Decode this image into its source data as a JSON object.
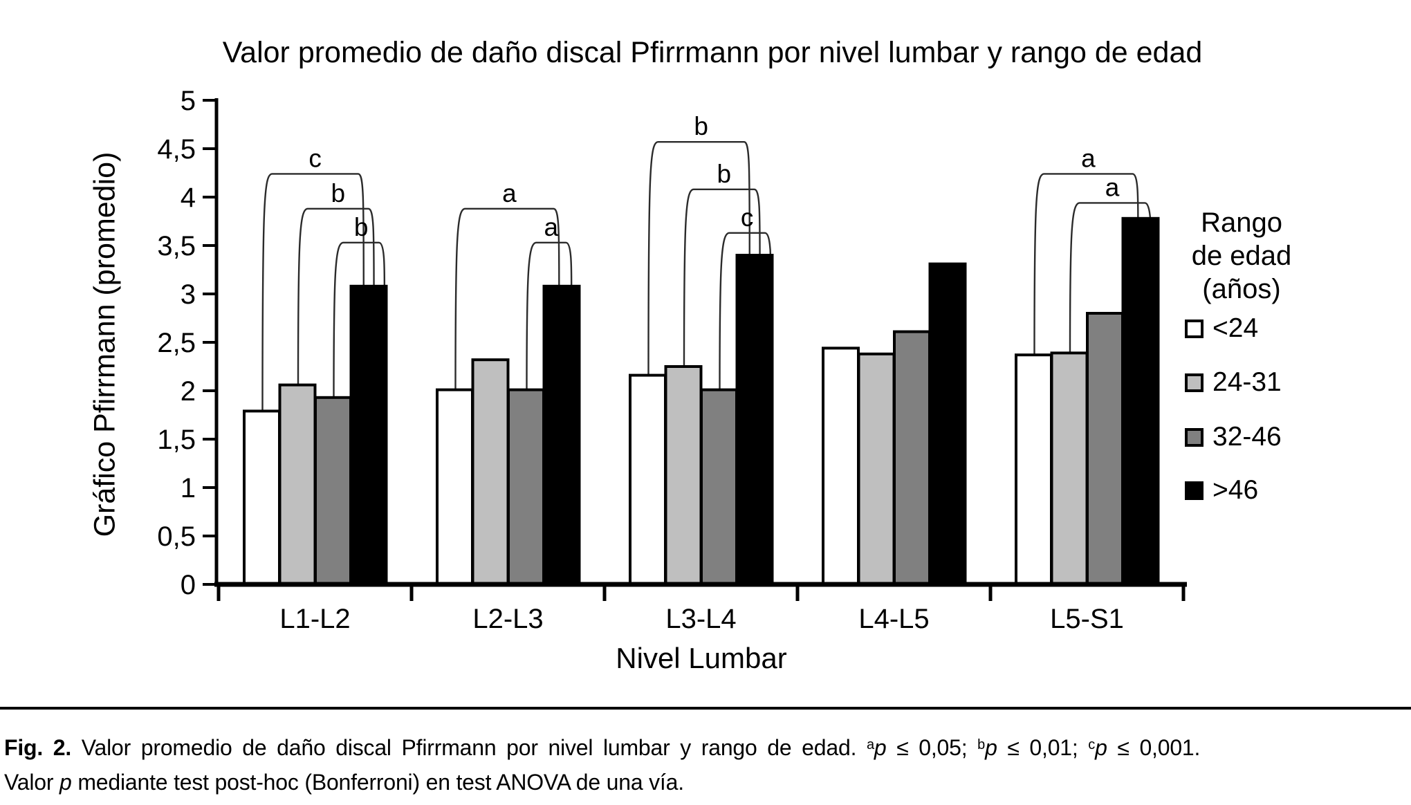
{
  "figure": {
    "title": "Valor promedio de daño discal Pfirrmann por nivel lumbar y rango de edad",
    "y_axis_title": "Gráfico Pfirrmann (promedio)",
    "x_axis_title": "Nivel Lumbar"
  },
  "legend": {
    "title_lines": [
      "Rango",
      "de edad",
      "(años)"
    ],
    "items": [
      {
        "label": "<24",
        "color": "#ffffff"
      },
      {
        "label": "24-31",
        "color": "#bfbfbf"
      },
      {
        "label": "32-46",
        "color": "#808080"
      },
      {
        "label": ">46",
        "color": "#000000"
      }
    ]
  },
  "chart_data": {
    "type": "bar",
    "title": "Valor promedio de daño discal Pfirrmann por nivel lumbar y rango de edad",
    "xlabel": "Nivel Lumbar",
    "ylabel": "Gráfico Pfirrmann (promedio)",
    "categories": [
      "L1-L2",
      "L2-L3",
      "L3-L4",
      "L4-L5",
      "L5-S1"
    ],
    "series": [
      {
        "name": "<24",
        "color": "#ffffff",
        "values": [
          1.79,
          2.01,
          2.16,
          2.44,
          2.37
        ]
      },
      {
        "name": "24-31",
        "color": "#bfbfbf",
        "values": [
          2.06,
          2.32,
          2.25,
          2.38,
          2.39
        ]
      },
      {
        "name": "32-46",
        "color": "#808080",
        "values": [
          1.93,
          2.01,
          2.01,
          2.61,
          2.8
        ]
      },
      {
        "name": ">46",
        "color": "#000000",
        "values": [
          3.08,
          3.08,
          3.4,
          3.31,
          3.78
        ]
      }
    ],
    "ylim": [
      0,
      5
    ],
    "ytick_labels": [
      "0",
      "0,5",
      "1",
      "1,5",
      "2",
      "2,5",
      "3",
      "3,5",
      "4",
      "4,5",
      "5"
    ],
    "decimal_separator": ",",
    "grid": false,
    "legend_position": "right",
    "bar_border_color": "#000000",
    "significance_brackets": [
      {
        "category": "L1-L2",
        "from_series": "<24",
        "to_series": ">46",
        "label": "c",
        "height": 4.24
      },
      {
        "category": "L1-L2",
        "from_series": "24-31",
        "to_series": ">46",
        "label": "b",
        "height": 3.88
      },
      {
        "category": "L1-L2",
        "from_series": "32-46",
        "to_series": ">46",
        "label": "b",
        "height": 3.53
      },
      {
        "category": "L2-L3",
        "from_series": "<24",
        "to_series": ">46",
        "label": "a",
        "height": 3.88
      },
      {
        "category": "L2-L3",
        "from_series": "32-46",
        "to_series": ">46",
        "label": "a",
        "height": 3.53
      },
      {
        "category": "L3-L4",
        "from_series": "<24",
        "to_series": ">46",
        "label": "b",
        "height": 4.57
      },
      {
        "category": "L3-L4",
        "from_series": "24-31",
        "to_series": ">46",
        "label": "b",
        "height": 4.08
      },
      {
        "category": "L3-L4",
        "from_series": "32-46",
        "to_series": ">46",
        "label": "c",
        "height": 3.63
      },
      {
        "category": "L5-S1",
        "from_series": "<24",
        "to_series": ">46",
        "label": "a",
        "height": 4.24
      },
      {
        "category": "L5-S1",
        "from_series": "24-31",
        "to_series": ">46",
        "label": "a",
        "height": 3.94
      }
    ]
  },
  "caption": {
    "parts_line1": [
      {
        "text": "Fig. 2.",
        "style": "bold"
      },
      {
        "text": " Valor promedio de daño discal Pfirrmann por nivel lumbar y rango de edad. ",
        "style": "normal"
      },
      {
        "text": "a",
        "style": "sup"
      },
      {
        "text": "p",
        "style": "italic"
      },
      {
        "text": " ≤ 0,05; ",
        "style": "normal"
      },
      {
        "text": "b",
        "style": "sup"
      },
      {
        "text": "p",
        "style": "italic"
      },
      {
        "text": " ≤ 0,01; ",
        "style": "normal"
      },
      {
        "text": "c",
        "style": "sup"
      },
      {
        "text": "p",
        "style": "italic"
      },
      {
        "text": " ≤ 0,001.",
        "style": "normal"
      }
    ],
    "parts_line2": [
      {
        "text": "Valor ",
        "style": "normal"
      },
      {
        "text": "p",
        "style": "italic"
      },
      {
        "text": " mediante test post-hoc (Bonferroni) en test ANOVA de una vía.",
        "style": "normal"
      }
    ]
  }
}
